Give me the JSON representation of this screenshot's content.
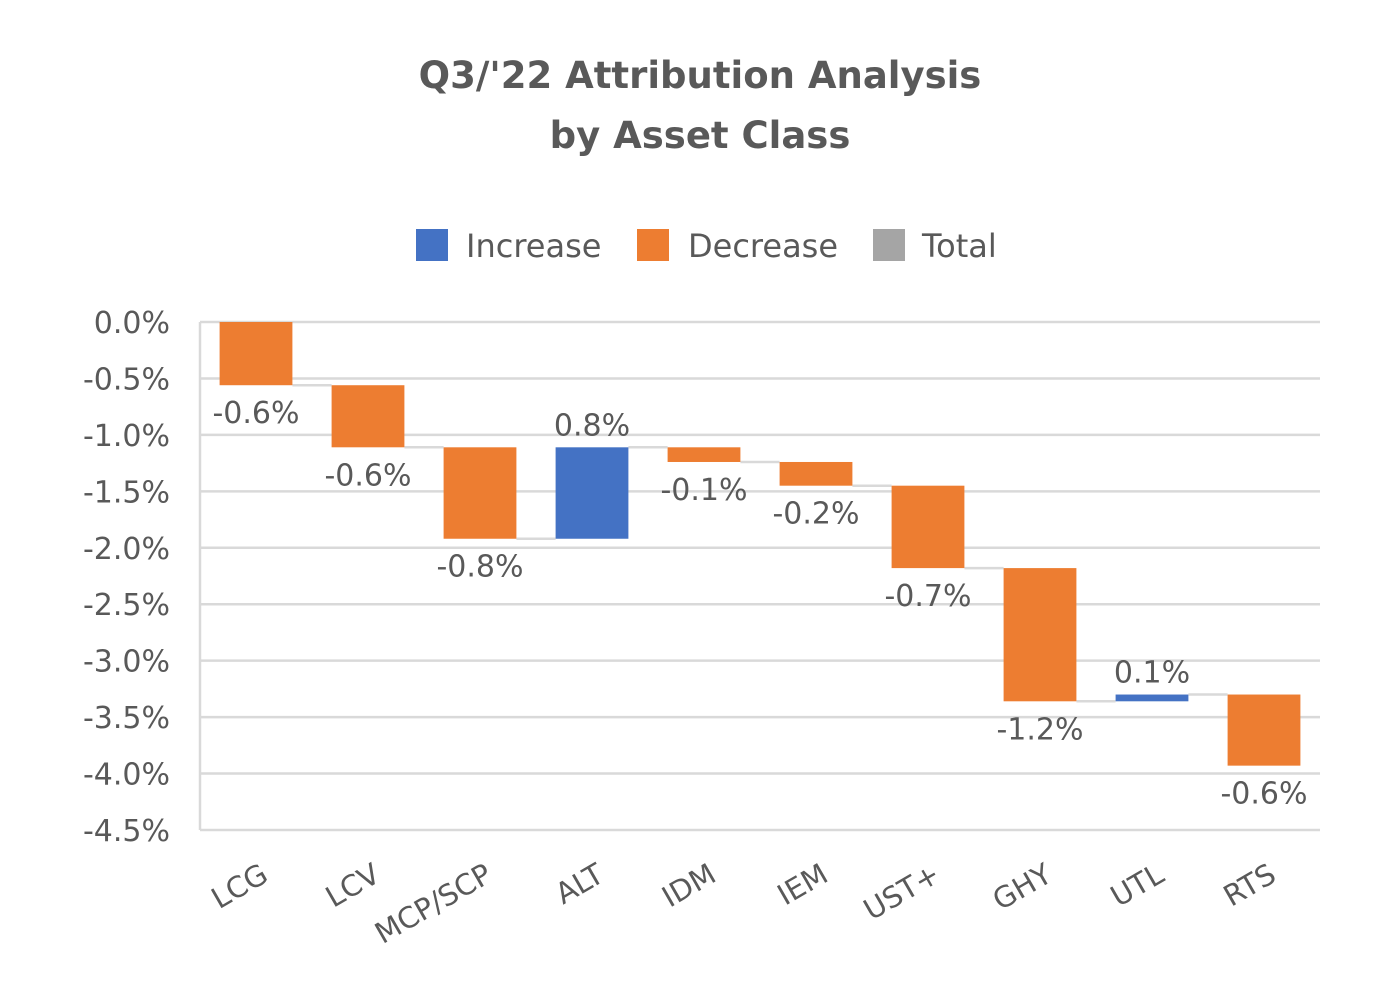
{
  "chart_data": {
    "type": "waterfall",
    "title": "Q3/'22 Attribution Analysis",
    "subtitle": "by Asset Class",
    "xlabel": "",
    "ylabel": "",
    "ylim": [
      -4.5,
      0.0
    ],
    "ytick_step": 0.5,
    "yticks": [
      "0.0%",
      "-0.5%",
      "-1.0%",
      "-1.5%",
      "-2.0%",
      "-2.5%",
      "-3.0%",
      "-3.5%",
      "-4.0%",
      "-4.5%"
    ],
    "grid": true,
    "legend_position": "top-center",
    "legend": [
      {
        "name": "Increase",
        "color": "#4472C4"
      },
      {
        "name": "Decrease",
        "color": "#ED7D31"
      },
      {
        "name": "Total",
        "color": "#A5A5A5"
      }
    ],
    "categories": [
      "LCG",
      "LCV",
      "MCP/SCP",
      "ALT",
      "IDM",
      "IEM",
      "UST+",
      "GHY",
      "UTL",
      "RTS"
    ],
    "values": [
      -0.56,
      -0.55,
      -0.81,
      0.81,
      -0.13,
      -0.21,
      -0.73,
      -1.18,
      0.06,
      -0.63
    ],
    "data_labels": [
      "-0.6%",
      "-0.6%",
      "-0.8%",
      "0.8%",
      "-0.1%",
      "-0.2%",
      "-0.7%",
      "-1.2%",
      "0.1%",
      "-0.6%"
    ],
    "start_value": 0.0,
    "colors": {
      "increase": "#4472C4",
      "decrease": "#ED7D31",
      "total": "#A5A5A5",
      "grid": "#D9D9D9",
      "connector": "#D9D9D9",
      "text": "#595959"
    }
  }
}
